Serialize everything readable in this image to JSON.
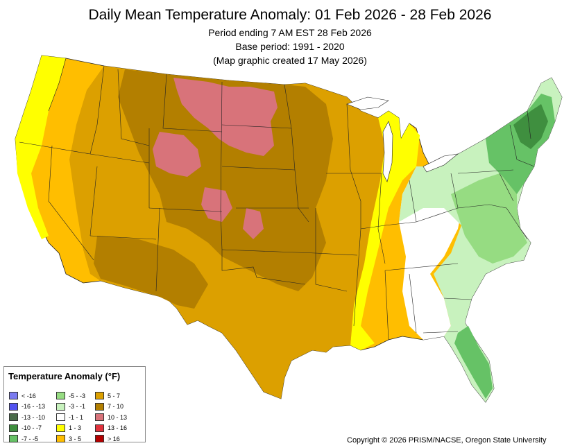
{
  "header": {
    "title": "Daily Mean Temperature Anomaly: 01 Feb 2026 - 28 Feb 2026",
    "period": "Period ending 7 AM EST 28 Feb 2026",
    "base": "Base period: 1991 - 2020",
    "created": "(Map graphic created 17 May 2026)"
  },
  "legend": {
    "title": "Temperature Anomaly (°F)",
    "columns": [
      [
        {
          "label": "< -16",
          "color": "#7b7bf0"
        },
        {
          "label": "-16 - -13",
          "color": "#5252f0"
        },
        {
          "label": "-13 - -10",
          "color": "#4a6b4a"
        },
        {
          "label": "-10 - -7",
          "color": "#3f8f3f"
        },
        {
          "label": "-7 - -5",
          "color": "#66c266"
        }
      ],
      [
        {
          "label": "-5 - -3",
          "color": "#96dc82"
        },
        {
          "label": "-3 - -1",
          "color": "#c8f2be"
        },
        {
          "label": "-1 - 1",
          "color": "#ffffff"
        },
        {
          "label": "1 - 3",
          "color": "#ffff00"
        },
        {
          "label": "3 - 5",
          "color": "#ffbe00"
        }
      ],
      [
        {
          "label": "5 - 7",
          "color": "#dca000"
        },
        {
          "label": "7 - 10",
          "color": "#b37f00"
        },
        {
          "label": "10 - 13",
          "color": "#d8737a"
        },
        {
          "label": "13 - 16",
          "color": "#e0323c"
        },
        {
          "label": "> 16",
          "color": "#b40000"
        }
      ]
    ]
  },
  "copyright": "Copyright © 2026 PRISM/NACSE, Oregon State University"
}
